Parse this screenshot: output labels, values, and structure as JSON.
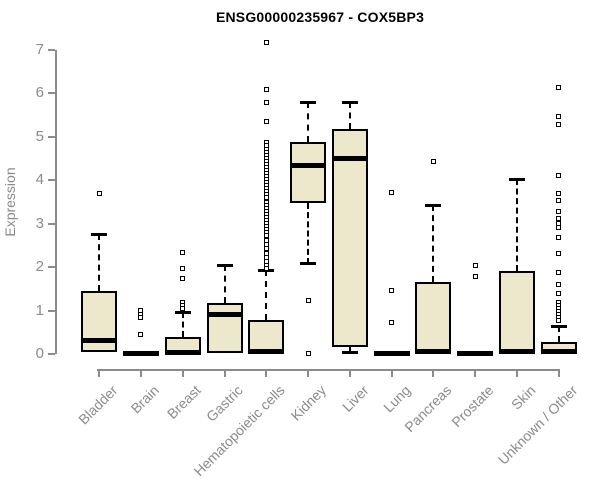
{
  "chart_data": {
    "type": "boxplot",
    "title": "ENSG00000235967 - COX5BP3",
    "ylabel": "Expression",
    "ylim": [
      0,
      7
    ],
    "yticks": [
      0,
      1,
      2,
      3,
      4,
      5,
      6,
      7
    ],
    "grid": false,
    "legend": false,
    "categories": [
      "Bladder",
      "Brain",
      "Breast",
      "Gastric",
      "Hematopoietic cells",
      "Kidney",
      "Liver",
      "Lung",
      "Pancreas",
      "Prostate",
      "Skin",
      "Unknown / Other"
    ],
    "series": [
      {
        "category": "Bladder",
        "whisker_low": 0.02,
        "q1": 0.05,
        "median": 0.3,
        "q3": 1.45,
        "whisker_high": 2.77,
        "outliers": [
          3.7
        ]
      },
      {
        "category": "Brain",
        "whisker_low": 0,
        "q1": 0,
        "median": 0.02,
        "q3": 0.04,
        "whisker_high": 0.04,
        "outliers": [
          1.0,
          0.92,
          0.85,
          0.45
        ]
      },
      {
        "category": "Breast",
        "whisker_low": 0,
        "q1": 0,
        "median": 0.03,
        "q3": 0.4,
        "whisker_high": 0.97,
        "outliers": [
          2.34,
          1.97,
          1.74,
          1.19,
          1.12,
          1.05
        ]
      },
      {
        "category": "Gastric",
        "whisker_low": 0,
        "q1": 0.02,
        "median": 0.9,
        "q3": 1.18,
        "whisker_high": 2.05,
        "outliers": []
      },
      {
        "category": "Hematopoietic cells",
        "whisker_low": 0,
        "q1": 0.02,
        "median": 0.05,
        "q3": 0.78,
        "whisker_high": 1.93,
        "outliers": [
          7.17,
          6.08,
          5.78,
          5.35,
          4.86,
          4.79,
          4.72,
          4.65,
          4.58,
          4.51,
          4.44,
          4.37,
          4.3,
          4.23,
          4.16,
          4.09,
          4.02,
          3.95,
          3.88,
          3.81,
          3.74,
          3.67,
          3.6,
          3.49,
          3.42,
          3.35,
          3.28,
          3.21,
          3.14,
          3.07,
          3.0,
          2.93,
          2.86,
          2.79,
          2.72,
          2.62,
          2.52,
          2.42,
          2.32,
          2.22,
          2.12,
          2.04,
          1.97
        ]
      },
      {
        "category": "Kidney",
        "whisker_low": 2.08,
        "q1": 3.47,
        "median": 4.33,
        "q3": 4.87,
        "whisker_high": 5.8,
        "outliers": [
          1.23,
          0.02
        ]
      },
      {
        "category": "Liver",
        "whisker_low": 0.02,
        "q1": 0.15,
        "median": 4.5,
        "q3": 5.19,
        "whisker_high": 5.8,
        "outliers": []
      },
      {
        "category": "Lung",
        "whisker_low": 0,
        "q1": 0,
        "median": 0.02,
        "q3": 0.04,
        "whisker_high": 0.04,
        "outliers": [
          3.71,
          1.46,
          0.72
        ]
      },
      {
        "category": "Pancreas",
        "whisker_low": 0,
        "q1": 0.02,
        "median": 0.05,
        "q3": 1.65,
        "whisker_high": 3.42,
        "outliers": [
          4.43
        ]
      },
      {
        "category": "Prostate",
        "whisker_low": 0,
        "q1": 0,
        "median": 0.02,
        "q3": 0.04,
        "whisker_high": 0.04,
        "outliers": [
          2.04,
          1.78
        ]
      },
      {
        "category": "Skin",
        "whisker_low": 0,
        "q1": 0.02,
        "median": 0.05,
        "q3": 1.92,
        "whisker_high": 4.02,
        "outliers": []
      },
      {
        "category": "Unknown / Other",
        "whisker_low": 0,
        "q1": 0.02,
        "median": 0.05,
        "q3": 0.27,
        "whisker_high": 0.65,
        "outliers": [
          6.14,
          5.47,
          5.28,
          4.11,
          3.7,
          3.53,
          3.27,
          3.13,
          3.0,
          2.91,
          2.68,
          2.31,
          1.88,
          1.59,
          1.4,
          1.19,
          1.12,
          1.05,
          0.98,
          0.91,
          0.84,
          0.78
        ]
      }
    ],
    "colors": {
      "box_fill": "#EDE7CB",
      "box_border": "#000000",
      "median": "#000000",
      "whisker": "#000000",
      "outlier_border": "#000000",
      "axis": "#8B8B8B",
      "title_color": "#000000",
      "background": "#FFFFFF"
    }
  }
}
